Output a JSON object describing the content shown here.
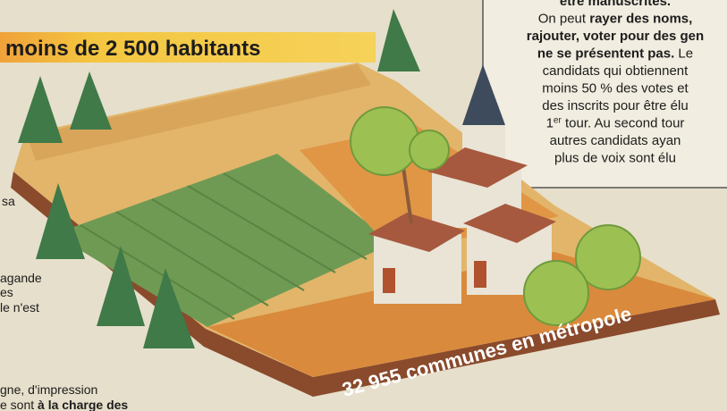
{
  "banner": {
    "title": "moins de 2 500 habitants"
  },
  "sidebar": {
    "lines": [
      [
        {
          "text": "être manuscrites.",
          "bold": true
        }
      ],
      [
        {
          "text": "On peut "
        },
        {
          "text": "rayer des noms,",
          "bold": true
        }
      ],
      [
        {
          "text": "rajouter, voter pour des gen",
          "bold": true
        }
      ],
      [
        {
          "text": "ne se présentent pas.",
          "bold": true
        },
        {
          "text": " Le"
        }
      ],
      [
        {
          "text": "candidats qui obtiennent"
        }
      ],
      [
        {
          "text": "moins 50 % des votes et"
        }
      ],
      [
        {
          "text": "des inscrits pour être élu"
        }
      ],
      [
        {
          "text": "1"
        },
        {
          "text": "er",
          "sup": true
        },
        {
          "text": " tour. Au second tour"
        }
      ],
      [
        {
          "text": "autres candidats ayan"
        }
      ],
      [
        {
          "text": "plus de voix sont élu"
        }
      ]
    ]
  },
  "left_fragments": [
    [
      {
        "text": "sa"
      }
    ],
    [
      {
        "text": "agande"
      }
    ],
    [
      {
        "text": "es"
      }
    ],
    [
      {
        "text": "le n'est"
      }
    ],
    [
      {
        "text": "gne, d'impression"
      }
    ],
    [
      {
        "text": "e sont "
      },
      {
        "text": "à la charge des",
        "bold": true
      }
    ]
  ],
  "ribbon": {
    "text": "32 955 communes en métropole"
  }
}
